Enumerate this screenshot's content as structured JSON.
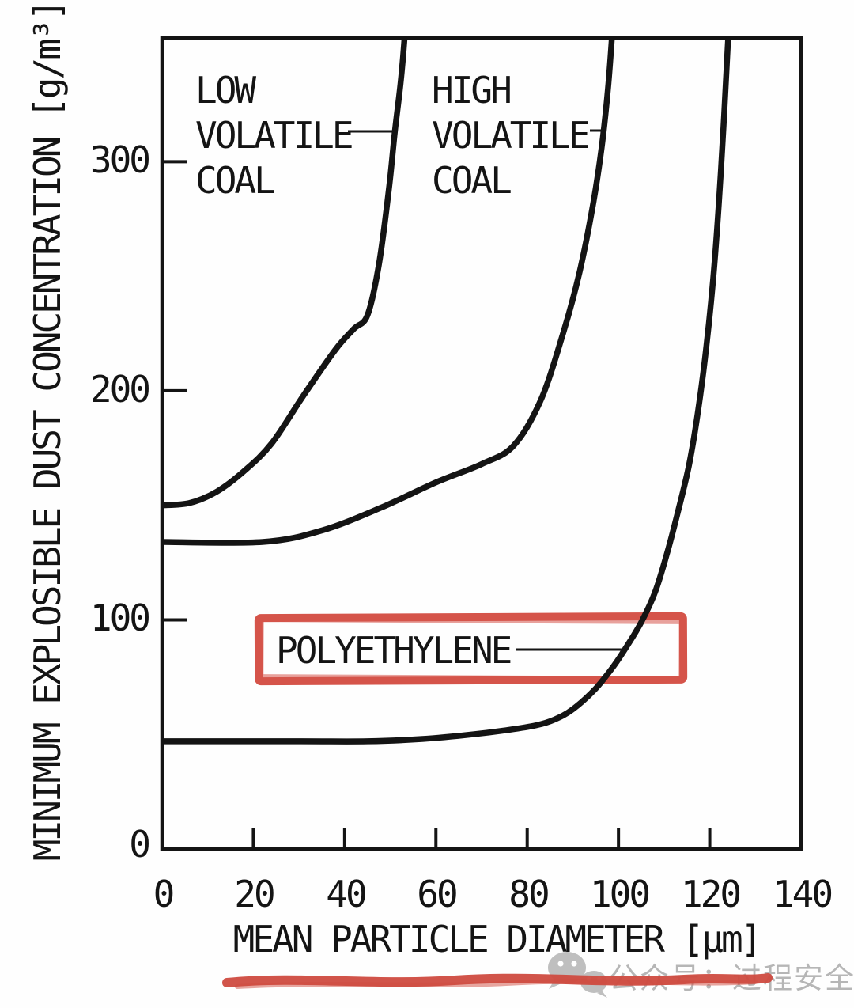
{
  "figure": {
    "labels": {
      "low_volatile_coal": {
        "lines": [
          "LOW",
          "VOLATILE",
          "COAL"
        ]
      },
      "high_volatile_coal": {
        "lines": [
          "HIGH",
          "VOLATILE",
          "COAL"
        ]
      },
      "polyethylene": {
        "text": "POLYETHYLENE",
        "highlighted": true
      }
    },
    "colors": {
      "ink": "#141414",
      "highlight_red": "#d5544a",
      "underline_red": "#cf4b40",
      "watermark_gray": "#b6b6b6"
    }
  },
  "watermark": {
    "icon": "wechat-icon",
    "text": "公众号：过程安全管理"
  },
  "chart_data": {
    "type": "line",
    "title": "",
    "xlabel": "MEAN PARTICLE DIAMETER [µm]",
    "ylabel": "MINIMUM EXPLOSIBLE DUST CONCENTRATION [g/m³]",
    "xlim": [
      0,
      140
    ],
    "ylim": [
      0,
      350
    ],
    "x_ticks": [
      0,
      20,
      40,
      60,
      80,
      100,
      120,
      140
    ],
    "y_ticks": [
      0,
      100,
      200,
      300
    ],
    "grid": false,
    "legend": "inline labels with leader lines",
    "series": [
      {
        "name": "LOW VOLATILE COAL",
        "color": "#141414",
        "points": [
          [
            0,
            150
          ],
          [
            6,
            151
          ],
          [
            12,
            156
          ],
          [
            18,
            165
          ],
          [
            24,
            177
          ],
          [
            31,
            198
          ],
          [
            38,
            218
          ],
          [
            42,
            227
          ],
          [
            45,
            233
          ],
          [
            47.5,
            255
          ],
          [
            49.7,
            288
          ],
          [
            51,
            313
          ],
          [
            52.3,
            335
          ],
          [
            53.2,
            356
          ],
          [
            53.9,
            378
          ]
        ]
      },
      {
        "name": "HIGH VOLATILE COAL",
        "color": "#141414",
        "points": [
          [
            0,
            134
          ],
          [
            22,
            134
          ],
          [
            35,
            139
          ],
          [
            48,
            149
          ],
          [
            60,
            160
          ],
          [
            70,
            168
          ],
          [
            77,
            176
          ],
          [
            83,
            196
          ],
          [
            88,
            226
          ],
          [
            91.5,
            252
          ],
          [
            94.4,
            281
          ],
          [
            96.3,
            306
          ],
          [
            97.7,
            332
          ],
          [
            98.7,
            358
          ],
          [
            99.3,
            378
          ]
        ]
      },
      {
        "name": "POLYETHYLENE",
        "color": "#141414",
        "highlighted": true,
        "points": [
          [
            0,
            47
          ],
          [
            30,
            47
          ],
          [
            45,
            47
          ],
          [
            57,
            48
          ],
          [
            68,
            50
          ],
          [
            76,
            52
          ],
          [
            82,
            54
          ],
          [
            86,
            56.5
          ],
          [
            90,
            61
          ],
          [
            95,
            70
          ],
          [
            99,
            80
          ],
          [
            102,
            89
          ],
          [
            105,
            99
          ],
          [
            108,
            112
          ],
          [
            110.5,
            128
          ],
          [
            113,
            147
          ],
          [
            115.5,
            168
          ],
          [
            117.5,
            192
          ],
          [
            119.3,
            220
          ],
          [
            120.8,
            250
          ],
          [
            122,
            282
          ],
          [
            123,
            315
          ],
          [
            123.8,
            345
          ],
          [
            124.4,
            366
          ],
          [
            125,
            378
          ]
        ]
      }
    ],
    "annotations": [
      {
        "type": "hand_drawn_box",
        "target": "POLYETHYLENE label",
        "color": "#d5544a"
      },
      {
        "type": "hand_drawn_underline",
        "location": "below x-axis title",
        "color": "#cf4b40"
      }
    ]
  }
}
